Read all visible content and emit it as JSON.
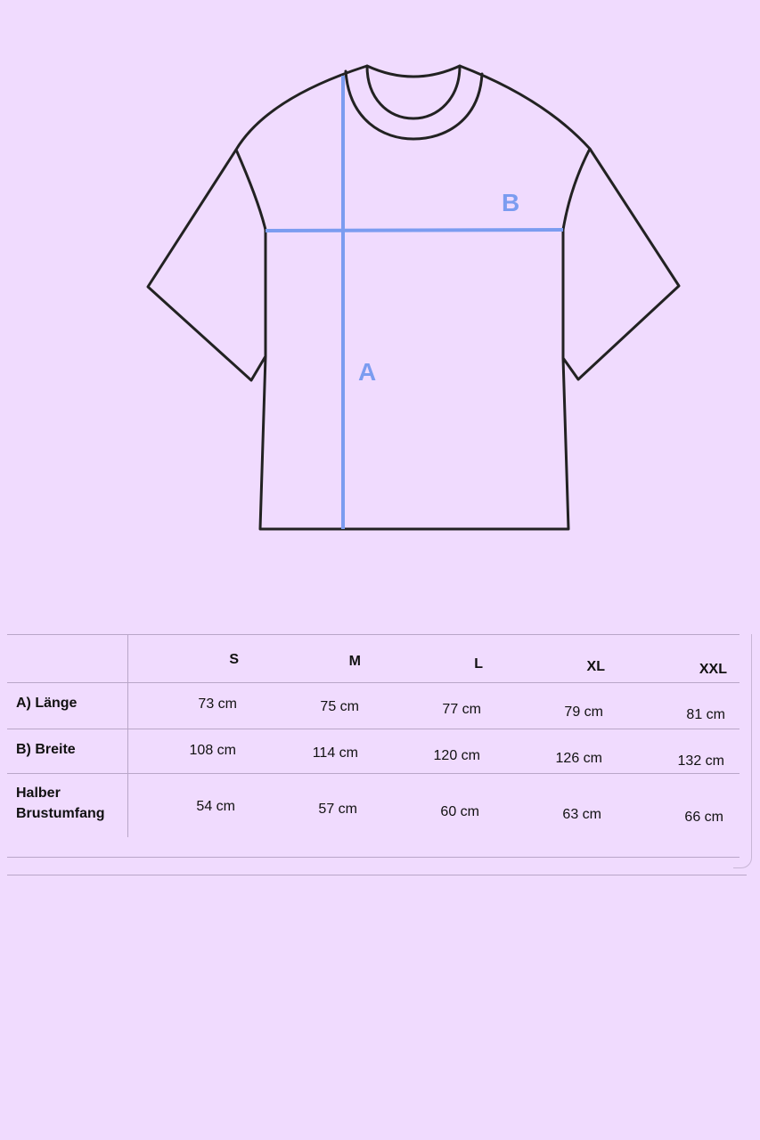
{
  "diagram": {
    "labels": {
      "length": "A",
      "width": "B"
    },
    "colors": {
      "background": "#f0dbfe",
      "outline": "#222222",
      "measure": "#7b9cf0"
    }
  },
  "table": {
    "sizes": [
      "S",
      "M",
      "L",
      "XL",
      "XXL"
    ],
    "rows": [
      {
        "label": "A) Länge",
        "values": [
          "73 cm",
          "75 cm",
          "77 cm",
          "79 cm",
          "81 cm"
        ]
      },
      {
        "label": "B) Breite",
        "values": [
          "108 cm",
          "114 cm",
          "120 cm",
          "126 cm",
          "132 cm"
        ]
      },
      {
        "label_line1": "Halber",
        "label_line2": "Brustumfang",
        "values": [
          "54 cm",
          "57 cm",
          "60 cm",
          "63 cm",
          "66 cm"
        ]
      }
    ]
  }
}
